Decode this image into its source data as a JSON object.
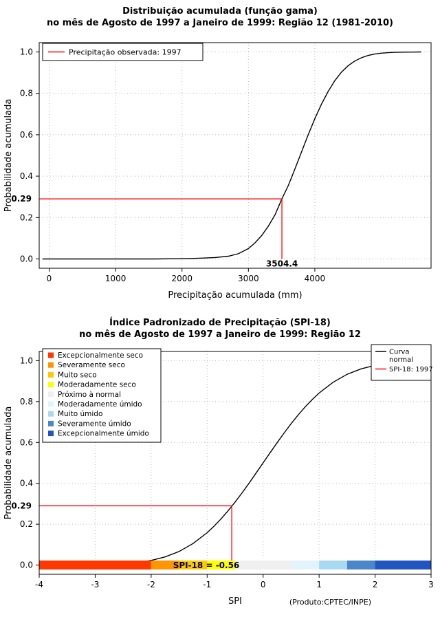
{
  "chart_data": [
    {
      "type": "line",
      "title": "Distribuição acumulada (função gama)",
      "subtitle": "no mês de Agosto de 1997 a Janeiro de 1999: Região 12 (1981-2010)",
      "xlabel": "Precipitação acumulada (mm)",
      "ylabel": "Probabilidade acumulada",
      "xlim": [
        -150,
        5750
      ],
      "ylim": [
        -0.045,
        1.045
      ],
      "xticks": [
        0,
        1000,
        2000,
        3000,
        4000
      ],
      "xtick_labels": [
        "0",
        "1000",
        "2000",
        "3000",
        "4000"
      ],
      "yticks": [
        0,
        0.2,
        0.4,
        0.6,
        0.8,
        1
      ],
      "ytick_labels": [
        "0.0",
        "0.2",
        "0.4",
        "0.6",
        "0.8",
        "1.0"
      ],
      "grid": true,
      "legend": {
        "position": "top-left",
        "items": [
          {
            "label": "Precipitação observada: 1997",
            "color": "#ff0000",
            "type": "line"
          }
        ]
      },
      "series": [
        {
          "name": "Curva gama acumulada",
          "color": "#000000",
          "points": [
            [
              -100,
              0
            ],
            [
              0,
              0
            ],
            [
              400,
              0
            ],
            [
              800,
              0
            ],
            [
              1200,
              0
            ],
            [
              1600,
              0
            ],
            [
              1900,
              0.001
            ],
            [
              2100,
              0.002
            ],
            [
              2300,
              0.004
            ],
            [
              2500,
              0.007
            ],
            [
              2700,
              0.013
            ],
            [
              2850,
              0.025
            ],
            [
              3000,
              0.05
            ],
            [
              3100,
              0.078
            ],
            [
              3200,
              0.113
            ],
            [
              3300,
              0.158
            ],
            [
              3400,
              0.213
            ],
            [
              3504,
              0.29
            ],
            [
              3600,
              0.354
            ],
            [
              3700,
              0.434
            ],
            [
              3800,
              0.517
            ],
            [
              3900,
              0.6
            ],
            [
              4000,
              0.677
            ],
            [
              4100,
              0.748
            ],
            [
              4200,
              0.809
            ],
            [
              4300,
              0.861
            ],
            [
              4400,
              0.902
            ],
            [
              4500,
              0.933
            ],
            [
              4600,
              0.956
            ],
            [
              4700,
              0.972
            ],
            [
              4800,
              0.983
            ],
            [
              4900,
              0.99
            ],
            [
              5000,
              0.994
            ],
            [
              5100,
              0.9965
            ],
            [
              5200,
              0.998
            ],
            [
              5350,
              0.999
            ],
            [
              5500,
              0.9995
            ],
            [
              5600,
              1
            ]
          ]
        }
      ],
      "annotation": {
        "x": 3504.4,
        "y": 0.29,
        "x_label": "3504.4",
        "y_label": "0.29",
        "color": "#ff0000"
      }
    },
    {
      "type": "line",
      "title": "Índice Padronizado de Precipitação (SPI-18)",
      "subtitle": "no mês de Agosto de 1997 a Janeiro de 1999: Região 12",
      "xlabel": "SPI",
      "ylabel": "Probabilidade acumulada",
      "footnote": "(Produto:CPTEC/INPE)",
      "xlim": [
        -4,
        3
      ],
      "ylim": [
        -0.045,
        1.045
      ],
      "xticks": [
        -4,
        -3,
        -2,
        -1,
        0,
        1,
        2,
        3
      ],
      "xtick_labels": [
        "-4",
        "-3",
        "-2",
        "-1",
        "0",
        "1",
        "2",
        "3"
      ],
      "yticks": [
        0,
        0.2,
        0.4,
        0.6,
        0.8,
        1
      ],
      "ytick_labels": [
        "0.0",
        "0.2",
        "0.4",
        "0.6",
        "0.8",
        "1.0"
      ],
      "grid": true,
      "category_legend": [
        {
          "label": "Excepcionalmente seco",
          "color": "#ff3800",
          "range": [
            -4,
            -2
          ]
        },
        {
          "label": "Severamente seco",
          "color": "#ff9500",
          "range": [
            -2,
            -1.5
          ]
        },
        {
          "label": "Muito seco",
          "color": "#ffc800",
          "range": [
            -1.5,
            -1
          ]
        },
        {
          "label": "Moderadamente seco",
          "color": "#ffff00",
          "range": [
            -1,
            -0.5
          ]
        },
        {
          "label": "Próximo à normal",
          "color": "#efefef",
          "range": [
            -0.5,
            0.5
          ]
        },
        {
          "label": "Moderadamente úmido",
          "color": "#e2f3fb",
          "range": [
            0.5,
            1
          ]
        },
        {
          "label": "Muito úmido",
          "color": "#a9d9f0",
          "range": [
            1,
            1.5
          ]
        },
        {
          "label": "Severamente úmido",
          "color": "#4a86c8",
          "range": [
            1.5,
            2
          ]
        },
        {
          "label": "Excepcionalmente úmido",
          "color": "#2156c0",
          "range": [
            2,
            3
          ]
        }
      ],
      "curve_legend": {
        "position": "top-right",
        "items": [
          {
            "label_lines": [
              "Curva",
              "normal"
            ],
            "color": "#000000"
          },
          {
            "label_lines": [
              "SPI-18: 1997"
            ],
            "color": "#ff0000"
          }
        ]
      },
      "series": [
        {
          "name": "Curva normal acumulada",
          "color": "#000000",
          "points": [
            [
              -4,
              0.0001
            ],
            [
              -3.5,
              0.0002
            ],
            [
              -3.25,
              0.0006
            ],
            [
              -3,
              0.0013
            ],
            [
              -2.75,
              0.003
            ],
            [
              -2.5,
              0.0062
            ],
            [
              -2.25,
              0.0122
            ],
            [
              -2,
              0.0228
            ],
            [
              -1.75,
              0.0401
            ],
            [
              -1.5,
              0.0668
            ],
            [
              -1.25,
              0.1056
            ],
            [
              -1,
              0.1587
            ],
            [
              -0.875,
              0.1908
            ],
            [
              -0.75,
              0.2266
            ],
            [
              -0.625,
              0.266
            ],
            [
              -0.56,
              0.2877
            ],
            [
              -0.5,
              0.3085
            ],
            [
              -0.375,
              0.3538
            ],
            [
              -0.25,
              0.4013
            ],
            [
              -0.125,
              0.4503
            ],
            [
              0,
              0.5
            ],
            [
              0.125,
              0.5497
            ],
            [
              0.25,
              0.5987
            ],
            [
              0.375,
              0.6462
            ],
            [
              0.5,
              0.6915
            ],
            [
              0.625,
              0.734
            ],
            [
              0.75,
              0.7734
            ],
            [
              0.875,
              0.8092
            ],
            [
              1,
              0.8413
            ],
            [
              1.25,
              0.8944
            ],
            [
              1.5,
              0.9332
            ],
            [
              1.75,
              0.9599
            ],
            [
              2,
              0.9772
            ],
            [
              2.25,
              0.9878
            ],
            [
              2.5,
              0.9938
            ],
            [
              2.75,
              0.997
            ],
            [
              3,
              0.9987
            ]
          ]
        }
      ],
      "annotation": {
        "x": -0.56,
        "y": 0.29,
        "y_label": "0.29",
        "bar_label": "SPI-18 = -0.56",
        "color": "#ff0000"
      }
    }
  ]
}
